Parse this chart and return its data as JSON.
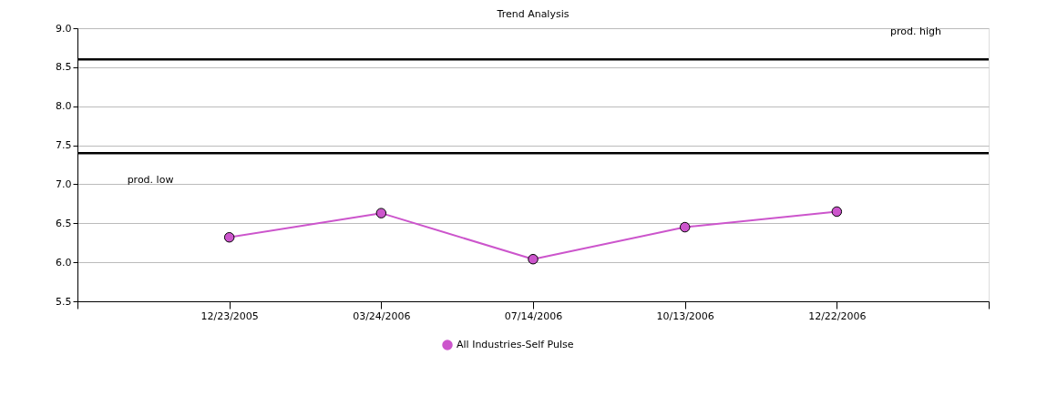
{
  "chart_data": {
    "type": "line",
    "title": "Trend Analysis",
    "categories": [
      "12/23/2005",
      "03/24/2006",
      "07/14/2006",
      "10/13/2006",
      "12/22/2006"
    ],
    "series": [
      {
        "name": "All Industries-Self Pulse",
        "color": "#cc55cc",
        "values": [
          6.32,
          6.63,
          6.04,
          6.45,
          6.65
        ]
      }
    ],
    "ylim": [
      5.5,
      9.0
    ],
    "yticks": [
      5.5,
      {
        "value": 6,
        "label": "6.0"
      },
      6.5,
      {
        "value": 7,
        "label": "7.0"
      },
      7.5,
      {
        "value": 8,
        "label": "8.0"
      },
      8.5,
      {
        "value": 9,
        "label": "9.0"
      }
    ],
    "ref_lines": [
      {
        "axis": "y",
        "value": 8.6,
        "label": "prod. high",
        "color": "#000000"
      },
      {
        "axis": "y",
        "value": 7.4,
        "label": "prod. low",
        "color": "#000000"
      }
    ],
    "grid": "y",
    "legend": "bottom",
    "marker": "circle",
    "line_style": "solid"
  }
}
